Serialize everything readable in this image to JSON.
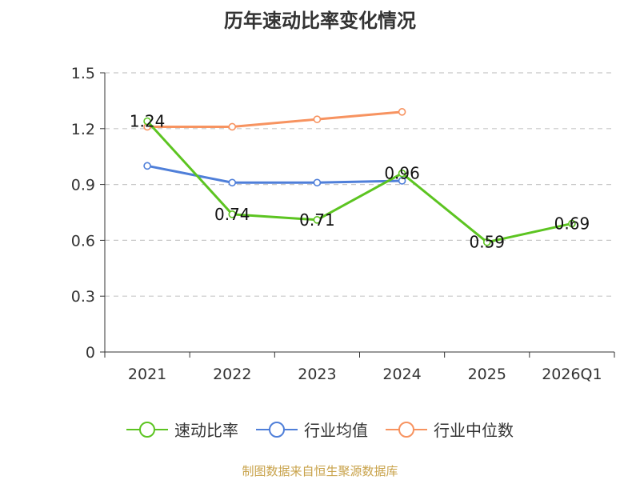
{
  "chart_data": {
    "type": "line",
    "title": "历年速动比率变化情况",
    "categories": [
      "2021",
      "2022",
      "2023",
      "2024",
      "2025",
      "2026Q1"
    ],
    "ylim": [
      0,
      1.5
    ],
    "yticks": [
      0,
      0.3,
      0.6,
      0.9,
      1.2,
      1.5
    ],
    "ytick_labels": [
      "0",
      "0.3",
      "0.6",
      "0.9",
      "1.2",
      "1.5"
    ],
    "grid": true,
    "legend_position": "bottom",
    "series": [
      {
        "name": "速动比率",
        "color": "#5cc421",
        "values": [
          1.24,
          0.74,
          0.71,
          0.96,
          0.59,
          0.69
        ],
        "labels": [
          "1.24",
          "0.74",
          "0.71",
          "0.96",
          "0.59",
          "0.69"
        ]
      },
      {
        "name": "行业均值",
        "color": "#4f7fd9",
        "values": [
          1.0,
          0.91,
          0.91,
          0.92,
          null,
          null
        ]
      },
      {
        "name": "行业中位数",
        "color": "#f79360",
        "values": [
          1.21,
          1.21,
          1.25,
          1.29,
          null,
          null
        ]
      }
    ]
  },
  "source": "制图数据来自恒生聚源数据库"
}
